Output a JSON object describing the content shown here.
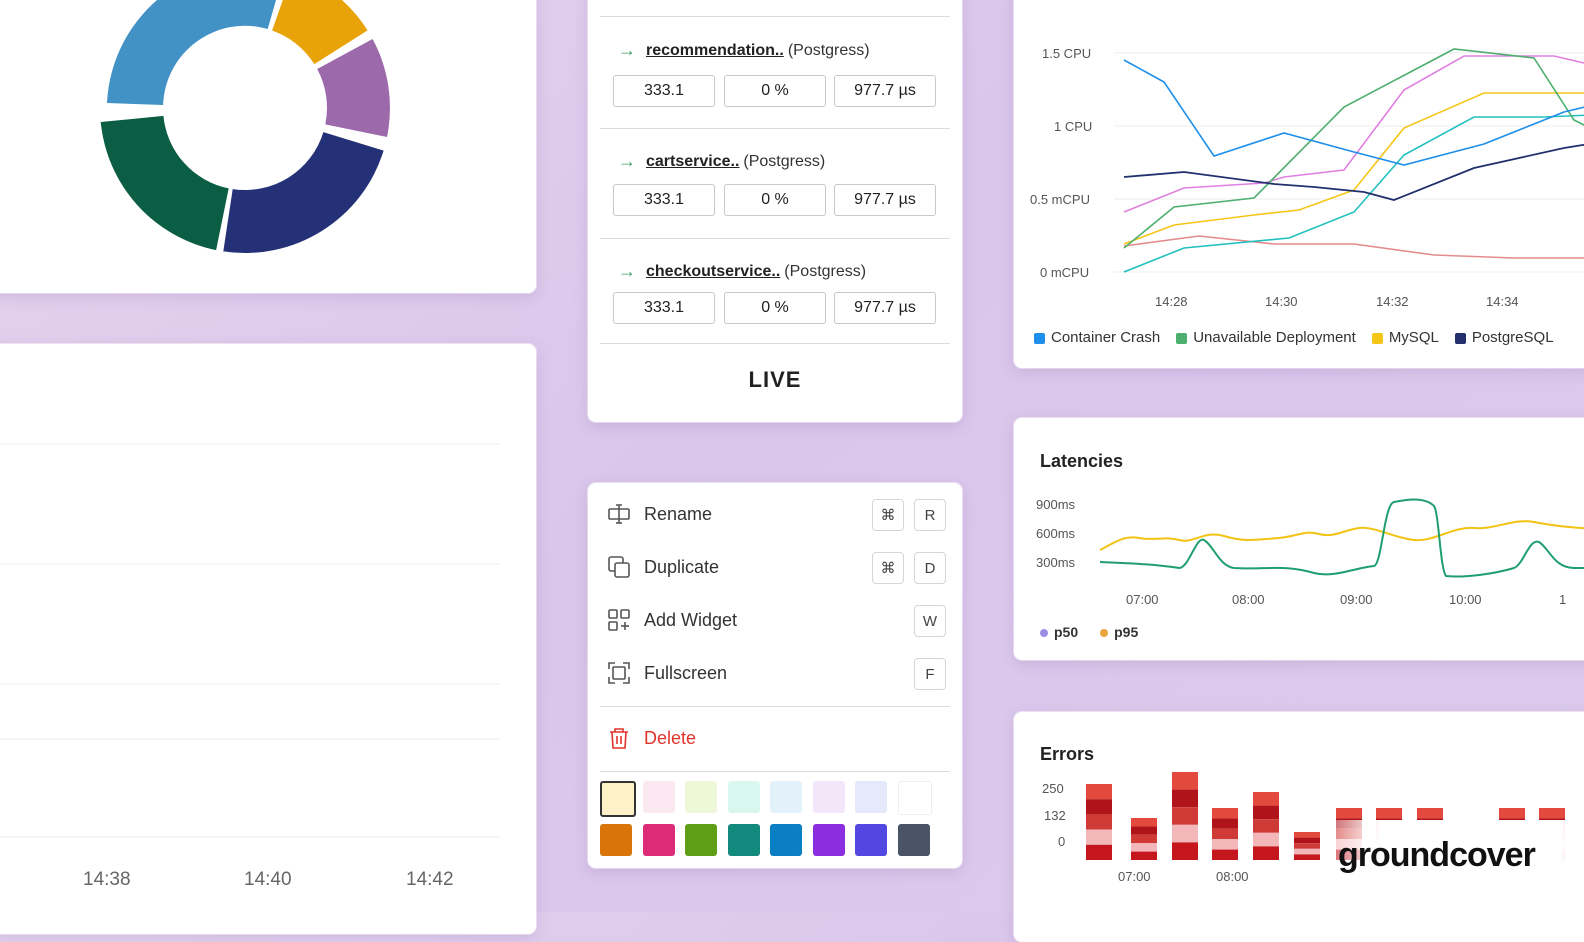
{
  "services": [
    {
      "name": "recommendation..",
      "db": "(Postgress)",
      "throughput": "333.1",
      "error_rate": "0 %",
      "latency": "977.7 µs"
    },
    {
      "name": "cartservice..",
      "db": "(Postgress)",
      "throughput": "333.1",
      "error_rate": "0 %",
      "latency": "977.7 µs"
    },
    {
      "name": "checkoutservice..",
      "db": "(Postgress)",
      "throughput": "333.1",
      "error_rate": "0 %",
      "latency": "977.7 µs"
    }
  ],
  "live_label": "LIVE",
  "context_menu": {
    "items": [
      {
        "label": "Rename",
        "icon": "rename-icon",
        "keys": [
          "⌘",
          "R"
        ]
      },
      {
        "label": "Duplicate",
        "icon": "duplicate-icon",
        "keys": [
          "⌘",
          "D"
        ]
      },
      {
        "label": "Add Widget",
        "icon": "add-widget-icon",
        "keys": [
          "W"
        ]
      },
      {
        "label": "Fullscreen",
        "icon": "fullscreen-icon",
        "keys": [
          "F"
        ]
      }
    ],
    "delete_label": "Delete",
    "swatches_light": [
      "#fdf2c7",
      "#fce8f0",
      "#eef7d8",
      "#d9f7ef",
      "#e3f1fb",
      "#f2e6f8",
      "#e6e8fb",
      "#ffffff"
    ],
    "swatches_dark": [
      "#d9740b",
      "#dd2b78",
      "#5e9e16",
      "#148a7e",
      "#0b7fc3",
      "#8b2ee0",
      "#5247e0",
      "#4a5467"
    ]
  },
  "cpu_chart": {
    "y_ticks": [
      "1.5 CPU",
      "1 CPU",
      "0.5 mCPU",
      "0 mCPU"
    ],
    "x_ticks": [
      "14:28",
      "14:30",
      "14:32",
      "14:34"
    ],
    "legend": [
      {
        "label": "Container Crash",
        "color": "#1e8fea"
      },
      {
        "label": "Unavailable Deployment",
        "color": "#4caf6e"
      },
      {
        "label": "MySQL",
        "color": "#f5c518"
      },
      {
        "label": "PostgreSQL",
        "color": "#22306e"
      }
    ]
  },
  "latency_chart": {
    "title": "Latencies",
    "y_ticks": [
      "900ms",
      "600ms",
      "300ms"
    ],
    "x_ticks": [
      "07:00",
      "08:00",
      "09:00",
      "10:00",
      "1"
    ],
    "legend": [
      {
        "label": "p50",
        "color": "#9d8ce3"
      },
      {
        "label": "p95",
        "color": "#e9a53a"
      }
    ]
  },
  "errors_chart": {
    "title": "Errors",
    "y_ticks": [
      "250",
      "132",
      "0"
    ],
    "x_ticks": [
      "07:00",
      "08:00"
    ]
  },
  "bar_chart": {
    "x_ticks": [
      "14:38",
      "14:40",
      "14:42"
    ]
  },
  "brand": "groundcover"
}
